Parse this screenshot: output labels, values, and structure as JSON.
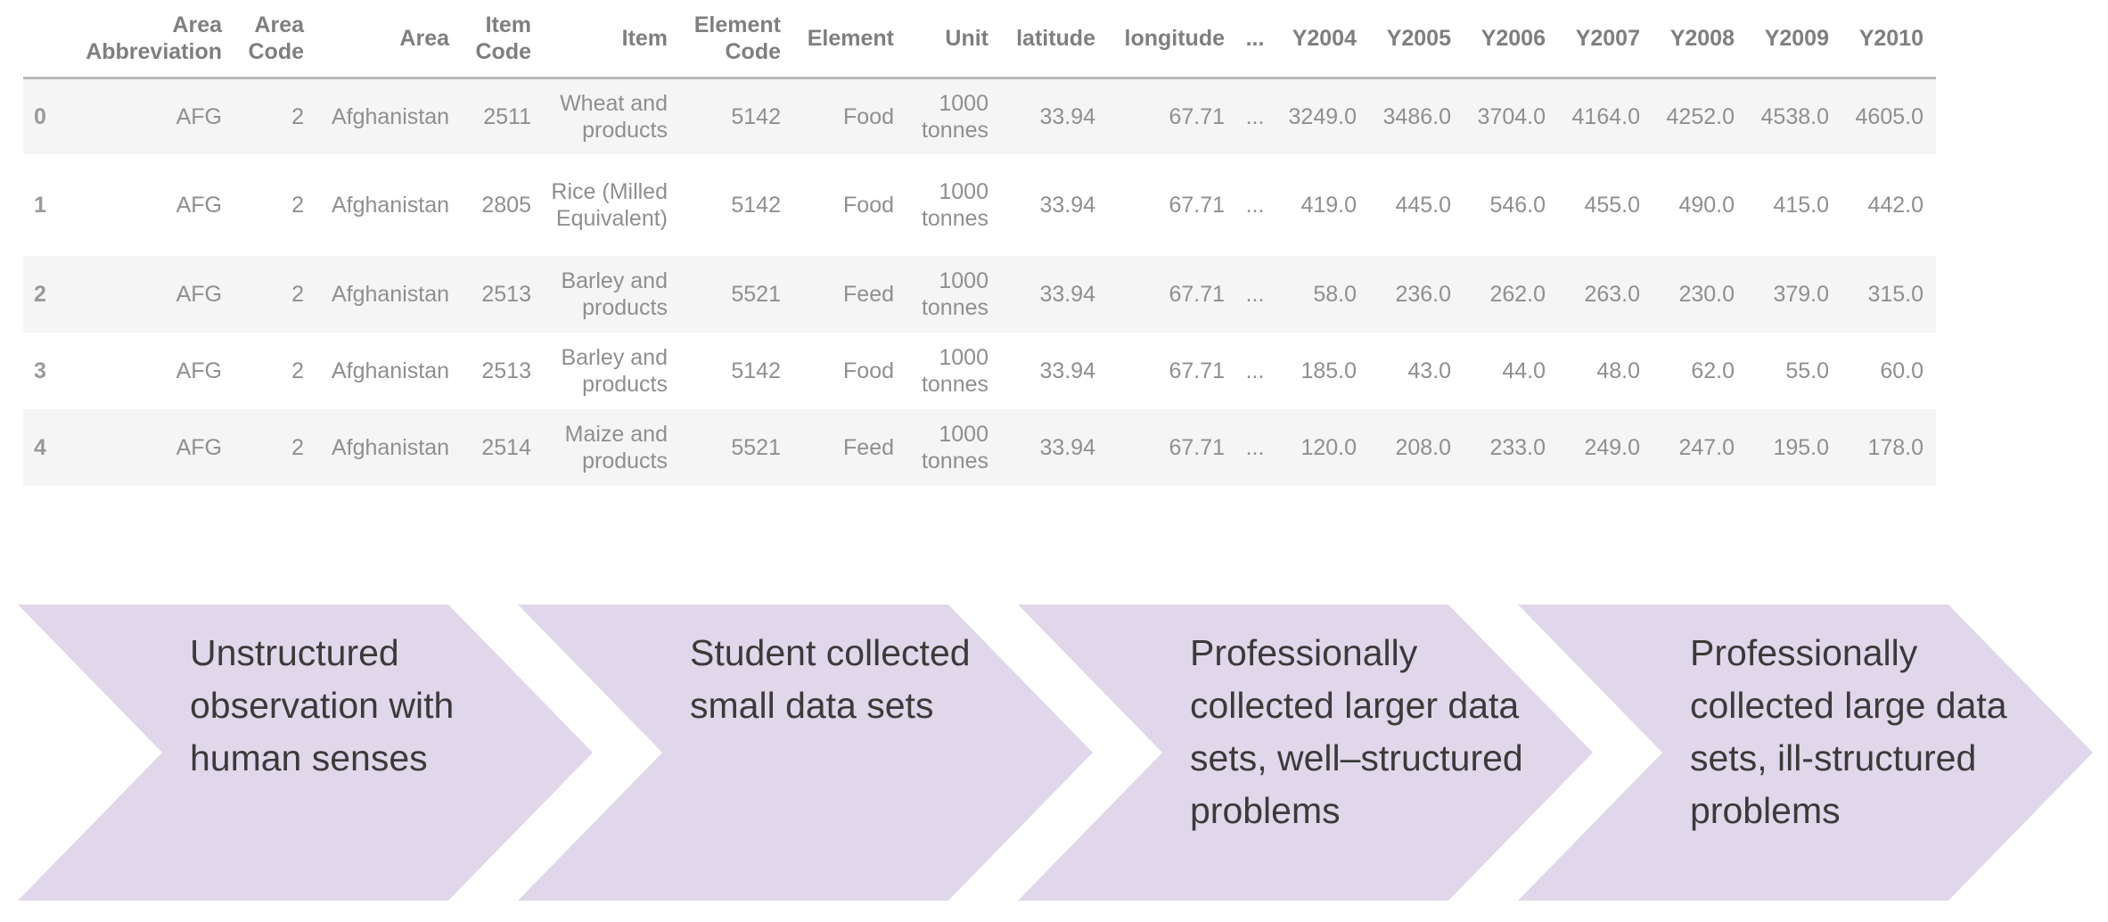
{
  "table": {
    "columns": [
      "",
      "Area Abbreviation",
      "Area Code",
      "Area",
      "Item Code",
      "Item",
      "Element Code",
      "Element",
      "Unit",
      "latitude",
      "longitude",
      "...",
      "Y2004",
      "Y2005",
      "Y2006",
      "Y2007",
      "Y2008",
      "Y2009",
      "Y2010"
    ],
    "rows": [
      [
        "0",
        "AFG",
        "2",
        "Afghanistan",
        "2511",
        "Wheat and products",
        "5142",
        "Food",
        "1000 tonnes",
        "33.94",
        "67.71",
        "...",
        "3249.0",
        "3486.0",
        "3704.0",
        "4164.0",
        "4252.0",
        "4538.0",
        "4605.0"
      ],
      [
        "1",
        "AFG",
        "2",
        "Afghanistan",
        "2805",
        "Rice (Milled Equivalent)",
        "5142",
        "Food",
        "1000 tonnes",
        "33.94",
        "67.71",
        "...",
        "419.0",
        "445.0",
        "546.0",
        "455.0",
        "490.0",
        "415.0",
        "442.0"
      ],
      [
        "2",
        "AFG",
        "2",
        "Afghanistan",
        "2513",
        "Barley and products",
        "5521",
        "Feed",
        "1000 tonnes",
        "33.94",
        "67.71",
        "...",
        "58.0",
        "236.0",
        "262.0",
        "263.0",
        "230.0",
        "379.0",
        "315.0"
      ],
      [
        "3",
        "AFG",
        "2",
        "Afghanistan",
        "2513",
        "Barley and products",
        "5142",
        "Food",
        "1000 tonnes",
        "33.94",
        "67.71",
        "...",
        "185.0",
        "43.0",
        "44.0",
        "48.0",
        "62.0",
        "55.0",
        "60.0"
      ],
      [
        "4",
        "AFG",
        "2",
        "Afghanistan",
        "2514",
        "Maize and products",
        "5521",
        "Feed",
        "1000 tonnes",
        "33.94",
        "67.71",
        "...",
        "120.0",
        "208.0",
        "233.0",
        "249.0",
        "247.0",
        "195.0",
        "178.0"
      ]
    ]
  },
  "process": {
    "steps": [
      {
        "label": "Unstructured observation with human senses"
      },
      {
        "label": "Student collected small data sets"
      },
      {
        "label": "Professionally collected larger data sets, well–structured problems"
      },
      {
        "label": "Professionally collected large data sets, ill-structured problems"
      }
    ]
  },
  "colors": {
    "chevron_fill": "#e1d7ea",
    "table_text": "#8f8f8f",
    "row_stripe": "#f5f5f5"
  }
}
